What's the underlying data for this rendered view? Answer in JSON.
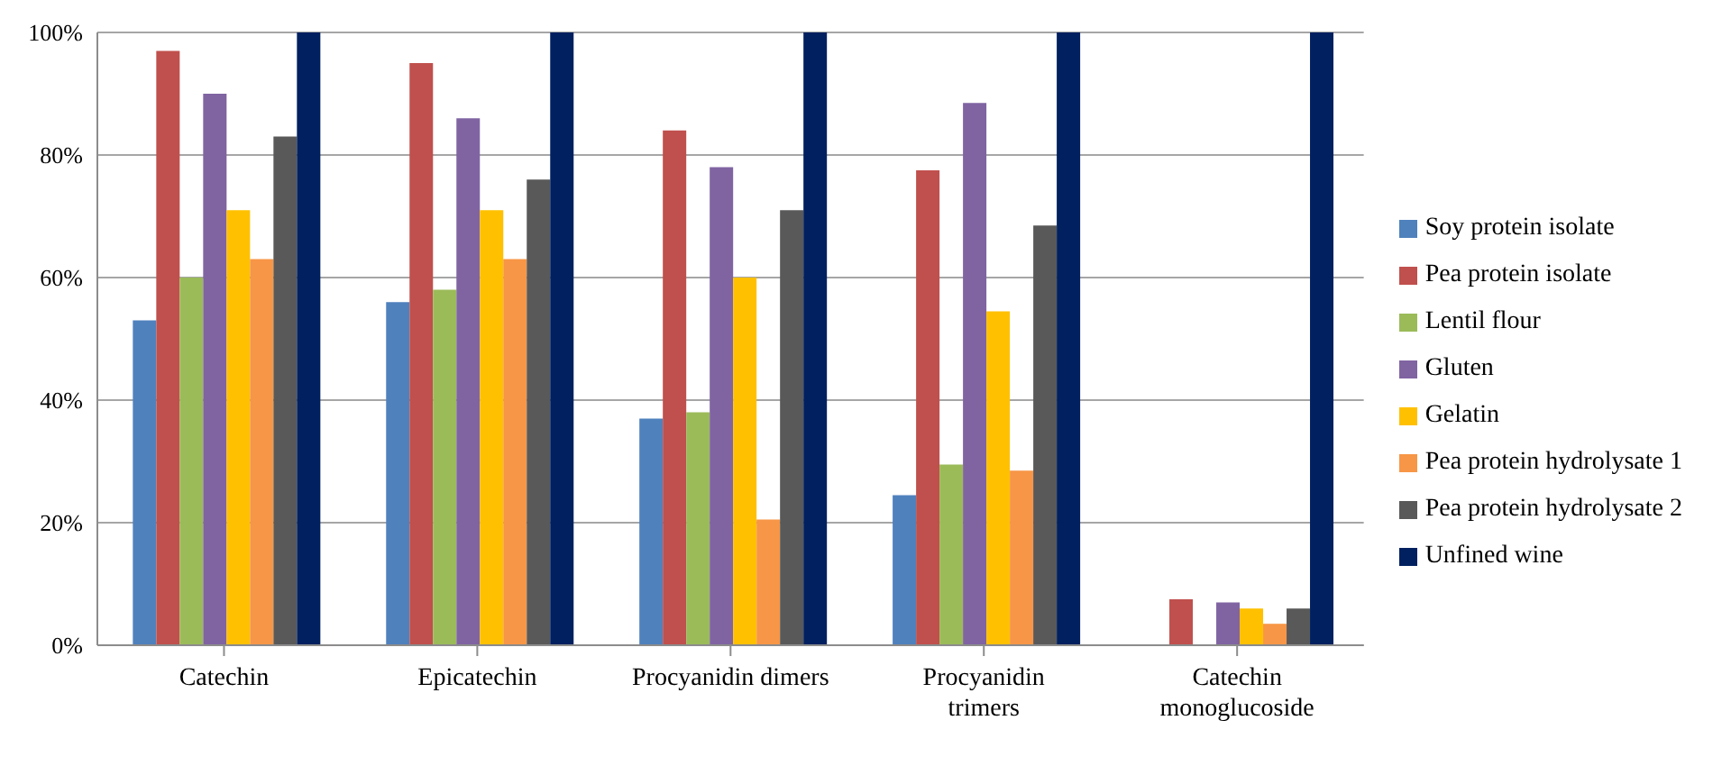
{
  "chart_data": {
    "type": "bar",
    "categories": [
      "Catechin",
      "Epicatechin",
      "Procyanidin dimers",
      "Procyanidin trimers",
      "Catechin monoglucoside"
    ],
    "series": [
      {
        "name": "Soy protein isolate",
        "color": "#4f81bd",
        "values": [
          53,
          56,
          37,
          24.5,
          0
        ]
      },
      {
        "name": "Pea protein isolate",
        "color": "#c0504d",
        "values": [
          97,
          95,
          84,
          77.5,
          7.5
        ]
      },
      {
        "name": "Lentil flour",
        "color": "#9bbb59",
        "values": [
          60,
          58,
          38,
          29.5,
          0
        ]
      },
      {
        "name": "Gluten",
        "color": "#8064a2",
        "values": [
          90,
          86,
          78,
          88.5,
          7
        ]
      },
      {
        "name": "Gelatin",
        "color": "#ffc000",
        "values": [
          71,
          71,
          60,
          54.5,
          6
        ]
      },
      {
        "name": "Pea protein hydrolysate 1",
        "color": "#f79646",
        "values": [
          63,
          63,
          20.5,
          28.5,
          3.5
        ]
      },
      {
        "name": "Pea protein hydrolysate 2",
        "color": "#595959",
        "values": [
          83,
          76,
          71,
          68.5,
          6
        ]
      },
      {
        "name": "Unfined wine",
        "color": "#002060",
        "values": [
          100,
          100,
          100,
          100,
          100
        ]
      }
    ],
    "ylim": [
      0,
      100
    ],
    "yticks": [
      {
        "value": 0,
        "label": "0%"
      },
      {
        "value": 20,
        "label": "20%"
      },
      {
        "value": 40,
        "label": "40%"
      },
      {
        "value": 60,
        "label": "60%"
      },
      {
        "value": 80,
        "label": "80%"
      },
      {
        "value": 100,
        "label": "100%"
      }
    ],
    "grid": "y",
    "legend": "right"
  }
}
